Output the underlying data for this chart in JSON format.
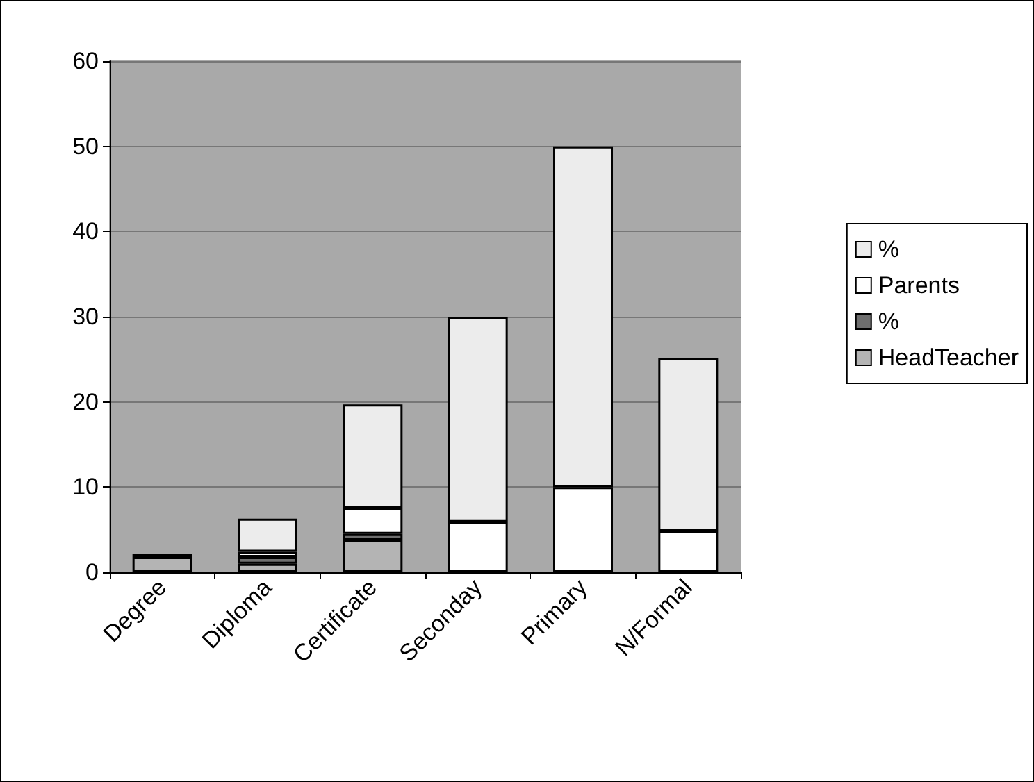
{
  "chart_data": {
    "type": "bar",
    "stacked": true,
    "categories": [
      "Degree",
      "Diploma",
      "Certificate",
      "Seconday",
      "Primary",
      "N/Formal"
    ],
    "series": [
      {
        "name": "HeadTeacher",
        "color": "#b4b4b4",
        "values": [
          1.8,
          1.0,
          3.8,
          0,
          0,
          0
        ]
      },
      {
        "name": "%",
        "color": "#6e6e6e",
        "values": [
          0.4,
          0.8,
          0.7,
          0,
          0,
          0
        ]
      },
      {
        "name": "Parents",
        "color": "#ffffff",
        "values": [
          0,
          0.6,
          3.0,
          5.9,
          10,
          4.8
        ]
      },
      {
        "name": "%",
        "color": "#ececec",
        "values": [
          0,
          3.9,
          12.2,
          24.1,
          40,
          20.3
        ]
      }
    ],
    "ylim": [
      0,
      60
    ],
    "yticks": [
      0,
      10,
      20,
      30,
      40,
      50,
      60
    ],
    "grid": "y",
    "legend": "right"
  }
}
